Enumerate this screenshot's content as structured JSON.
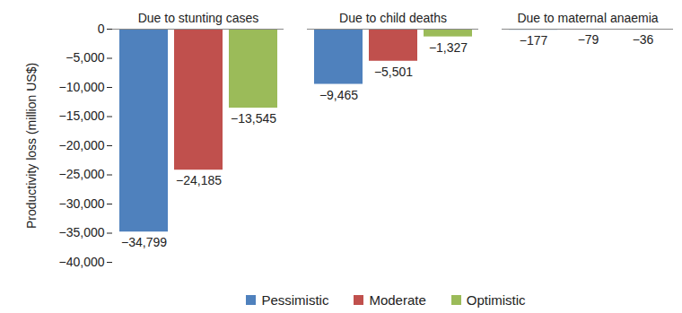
{
  "chart_data": {
    "type": "bar",
    "categories": [
      "Due to stunting cases",
      "Due to child deaths",
      "Due to maternal anaemia"
    ],
    "series": [
      {
        "name": "Pessimistic",
        "color": "#4F81BD",
        "values": [
          -34799,
          -9465,
          -177
        ],
        "value_labels": [
          "−34,799",
          "−9,465",
          "−177"
        ]
      },
      {
        "name": "Moderate",
        "color": "#C0504D",
        "values": [
          -24185,
          -5501,
          -79
        ],
        "value_labels": [
          "−24,185",
          "−5,501",
          "−79"
        ]
      },
      {
        "name": "Optimistic",
        "color": "#9BBB59",
        "values": [
          -13545,
          -1327,
          -36
        ],
        "value_labels": [
          "−13,545",
          "−1,327",
          "−36"
        ]
      }
    ],
    "ylabel": "Productivity loss (million US$)",
    "ylim": [
      -40000,
      0
    ],
    "yticks": [
      {
        "value": -40000,
        "label": "−40,000"
      },
      {
        "value": -35000,
        "label": "−35,000"
      },
      {
        "value": -30000,
        "label": "−30,000"
      },
      {
        "value": -25000,
        "label": "−25,000"
      },
      {
        "value": -20000,
        "label": "−20,000"
      },
      {
        "value": -15000,
        "label": "−15,000"
      },
      {
        "value": -10000,
        "label": "−10,000"
      },
      {
        "value": -5000,
        "label": "−5,000"
      },
      0
    ],
    "grid": false,
    "data_labels": true,
    "legend": "bottom"
  }
}
